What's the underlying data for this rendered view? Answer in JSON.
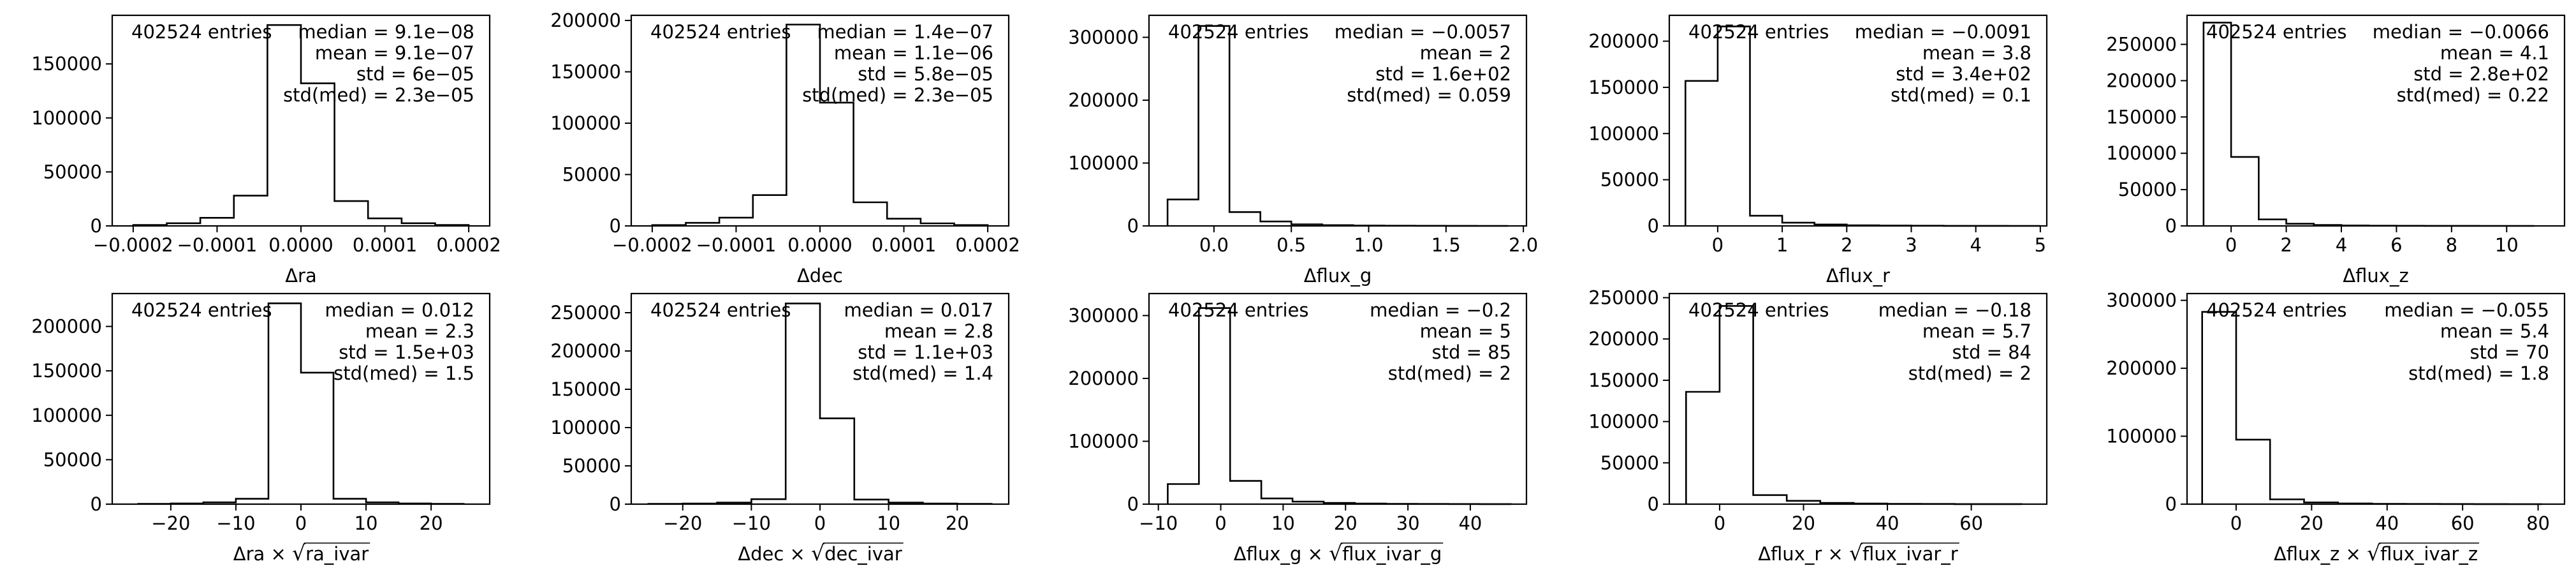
{
  "figure": {
    "background": "#ffffff",
    "line_color": "#000000"
  },
  "chart_data": [
    {
      "type": "histogram",
      "xlabel": "Δra",
      "xlim": [
        -0.000225,
        0.000225
      ],
      "ylim": [
        0,
        195000
      ],
      "xticks": [
        -0.0002,
        -0.0001,
        0.0,
        0.0001,
        0.0002
      ],
      "xtick_labels": [
        "−0.0002",
        "−0.0001",
        "0.0000",
        "0.0001",
        "0.0002"
      ],
      "yticks": [
        0,
        50000,
        100000,
        150000
      ],
      "bin_edges": [
        -0.0002,
        -0.00016,
        -0.00012,
        -8e-05,
        -4e-05,
        0.0,
        4e-05,
        8e-05,
        0.00012,
        0.00016,
        0.0002
      ],
      "counts": [
        800,
        2500,
        7500,
        28000,
        186000,
        132000,
        23000,
        7000,
        2500,
        800
      ],
      "entries_text": "402524 entries",
      "stats_lines": [
        "median = 9.1e−08",
        "mean = 9.1e−07",
        "std = 6e−05",
        "std(med) = 2.3e−05"
      ]
    },
    {
      "type": "histogram",
      "xlabel": "Δdec",
      "xlim": [
        -0.000225,
        0.000225
      ],
      "ylim": [
        0,
        205000
      ],
      "xticks": [
        -0.0002,
        -0.0001,
        0.0,
        0.0001,
        0.0002
      ],
      "xtick_labels": [
        "−0.0002",
        "−0.0001",
        "0.0000",
        "0.0001",
        "0.0002"
      ],
      "yticks": [
        0,
        50000,
        100000,
        150000,
        200000
      ],
      "bin_edges": [
        -0.0002,
        -0.00016,
        -0.00012,
        -8e-05,
        -4e-05,
        0.0,
        4e-05,
        8e-05,
        0.00012,
        0.00016,
        0.0002
      ],
      "counts": [
        800,
        3000,
        8000,
        30000,
        196000,
        120000,
        23000,
        7000,
        2500,
        800
      ],
      "entries_text": "402524 entries",
      "stats_lines": [
        "median = 1.4e−07",
        "mean = 1.1e−06",
        "std = 5.8e−05",
        "std(med) = 2.3e−05"
      ]
    },
    {
      "type": "histogram",
      "xlabel": "Δflux_g",
      "xlim": [
        -0.42,
        2.02
      ],
      "ylim": [
        0,
        335000
      ],
      "xticks": [
        0.0,
        0.5,
        1.0,
        1.5,
        2.0
      ],
      "xtick_labels": [
        "0.0",
        "0.5",
        "1.0",
        "1.5",
        "2.0"
      ],
      "yticks": [
        0,
        100000,
        200000,
        300000
      ],
      "bin_edges": [
        -0.3,
        -0.1,
        0.1,
        0.3,
        0.5,
        0.7,
        0.9,
        1.1,
        1.3,
        1.5,
        1.7,
        1.9
      ],
      "counts": [
        42000,
        318000,
        22000,
        7000,
        2500,
        1200,
        600,
        300,
        200,
        100,
        50
      ],
      "entries_text": "402524 entries",
      "stats_lines": [
        "median = −0.0057",
        "mean = 2",
        "std = 1.6e+02",
        "std(med) = 0.059"
      ]
    },
    {
      "type": "histogram",
      "xlabel": "Δflux_r",
      "xlim": [
        -0.75,
        5.1
      ],
      "ylim": [
        0,
        228000
      ],
      "xticks": [
        0,
        1,
        2,
        3,
        4,
        5
      ],
      "xtick_labels": [
        "0",
        "1",
        "2",
        "3",
        "4",
        "5"
      ],
      "yticks": [
        0,
        50000,
        100000,
        150000,
        200000
      ],
      "bin_edges": [
        -0.5,
        0.0,
        0.5,
        1.0,
        1.5,
        2.0,
        2.5,
        3.0,
        3.5,
        4.0,
        4.5,
        5.0
      ],
      "counts": [
        157000,
        216000,
        11000,
        3500,
        1500,
        700,
        400,
        200,
        100,
        50,
        30
      ],
      "entries_text": "402524 entries",
      "stats_lines": [
        "median = −0.0091",
        "mean = 3.8",
        "std = 3.4e+02",
        "std(med) = 0.1"
      ]
    },
    {
      "type": "histogram",
      "xlabel": "Δflux_z",
      "xlim": [
        -1.6,
        12.1
      ],
      "ylim": [
        0,
        290000
      ],
      "xticks": [
        0,
        2,
        4,
        6,
        8,
        10
      ],
      "xtick_labels": [
        "0",
        "2",
        "4",
        "6",
        "8",
        "10"
      ],
      "yticks": [
        0,
        50000,
        100000,
        150000,
        200000,
        250000
      ],
      "bin_edges": [
        -1.0,
        0.0,
        1.0,
        2.0,
        3.0,
        4.0,
        5.0,
        6.0,
        7.0,
        8.0,
        9.0,
        10.0,
        11.0
      ],
      "counts": [
        280000,
        95000,
        9000,
        3000,
        1200,
        600,
        300,
        200,
        100,
        50,
        30,
        20
      ],
      "entries_text": "402524 entries",
      "stats_lines": [
        "median = −0.0066",
        "mean = 4.1",
        "std = 2.8e+02",
        "std(med) = 0.22"
      ]
    },
    {
      "type": "histogram",
      "xlabel": "Δra × √ra_ivar",
      "xlabel_parts": [
        "Δra",
        "×",
        "ra_ivar"
      ],
      "xlim": [
        -29,
        29
      ],
      "ylim": [
        0,
        237000
      ],
      "xticks": [
        -20,
        -10,
        0,
        10,
        20
      ],
      "xtick_labels": [
        "−20",
        "−10",
        "0",
        "10",
        "20"
      ],
      "yticks": [
        0,
        50000,
        100000,
        150000,
        200000
      ],
      "bin_edges": [
        -25,
        -20,
        -15,
        -10,
        -5,
        0,
        5,
        10,
        15,
        20,
        25
      ],
      "counts": [
        300,
        800,
        2000,
        6000,
        226000,
        148000,
        6000,
        2000,
        800,
        300
      ],
      "entries_text": "402524 entries",
      "stats_lines": [
        "median = 0.012",
        "mean = 2.3",
        "std = 1.5e+03",
        "std(med) = 1.5"
      ]
    },
    {
      "type": "histogram",
      "xlabel": "Δdec × √dec_ivar",
      "xlabel_parts": [
        "Δdec",
        "×",
        "dec_ivar"
      ],
      "xlim": [
        -27.5,
        27.5
      ],
      "ylim": [
        0,
        275000
      ],
      "xticks": [
        -20,
        -10,
        0,
        10,
        20
      ],
      "xtick_labels": [
        "−20",
        "−10",
        "0",
        "10",
        "20"
      ],
      "yticks": [
        0,
        50000,
        100000,
        150000,
        200000,
        250000
      ],
      "bin_edges": [
        -25,
        -20,
        -15,
        -10,
        -5,
        0,
        5,
        10,
        15,
        20,
        25
      ],
      "counts": [
        300,
        800,
        2000,
        6500,
        262000,
        112000,
        6000,
        2000,
        800,
        300
      ],
      "entries_text": "402524 entries",
      "stats_lines": [
        "median = 0.017",
        "mean = 2.8",
        "std = 1.1e+03",
        "std(med) = 1.4"
      ]
    },
    {
      "type": "histogram",
      "xlabel": "Δflux_g × √flux_ivar_g",
      "xlabel_parts": [
        "Δflux_g",
        "×",
        "flux_ivar_g"
      ],
      "xlim": [
        -11.5,
        49
      ],
      "ylim": [
        0,
        335000
      ],
      "xticks": [
        -10,
        0,
        10,
        20,
        30,
        40
      ],
      "xtick_labels": [
        "−10",
        "0",
        "10",
        "20",
        "30",
        "40"
      ],
      "yticks": [
        0,
        100000,
        200000,
        300000
      ],
      "bin_edges": [
        -8.5,
        -3.5,
        1.5,
        6.5,
        11.5,
        16.5,
        21.5,
        26.5,
        31.5,
        36.5,
        41.5,
        46.5
      ],
      "counts": [
        32000,
        312000,
        37000,
        9000,
        4000,
        2000,
        1000,
        500,
        300,
        200,
        100
      ],
      "entries_text": "402524 entries",
      "stats_lines": [
        "median = −0.2",
        "mean = 5",
        "std = 85",
        "std(med) = 2"
      ]
    },
    {
      "type": "histogram",
      "xlabel": "Δflux_r × √flux_ivar_r",
      "xlabel_parts": [
        "Δflux_r",
        "×",
        "flux_ivar_r"
      ],
      "xlim": [
        -12,
        78
      ],
      "ylim": [
        0,
        255000
      ],
      "xticks": [
        0,
        20,
        40,
        60
      ],
      "xtick_labels": [
        "0",
        "20",
        "40",
        "60"
      ],
      "yticks": [
        0,
        50000,
        100000,
        150000,
        200000,
        250000
      ],
      "bin_edges": [
        -8,
        0,
        8,
        16,
        24,
        32,
        40,
        48,
        56,
        64,
        72
      ],
      "counts": [
        136000,
        240000,
        11000,
        4000,
        1500,
        700,
        400,
        200,
        100,
        50
      ],
      "entries_text": "402524 entries",
      "stats_lines": [
        "median = −0.18",
        "mean = 5.7",
        "std = 84",
        "std(med) = 2"
      ]
    },
    {
      "type": "histogram",
      "xlabel": "Δflux_z × √flux_ivar_z",
      "xlabel_parts": [
        "Δflux_z",
        "×",
        "flux_ivar_z"
      ],
      "xlim": [
        -13,
        87
      ],
      "ylim": [
        0,
        310000
      ],
      "xticks": [
        0,
        20,
        40,
        60,
        80
      ],
      "xtick_labels": [
        "0",
        "20",
        "40",
        "60",
        "80"
      ],
      "yticks": [
        0,
        100000,
        200000,
        300000
      ],
      "bin_edges": [
        -9,
        0,
        9,
        18,
        27,
        36,
        45,
        54,
        63,
        72,
        81
      ],
      "counts": [
        283000,
        95000,
        7000,
        2500,
        1000,
        500,
        300,
        150,
        80,
        40
      ],
      "entries_text": "402524 entries",
      "stats_lines": [
        "median = −0.055",
        "mean = 5.4",
        "std = 70",
        "std(med) = 1.8"
      ]
    }
  ]
}
